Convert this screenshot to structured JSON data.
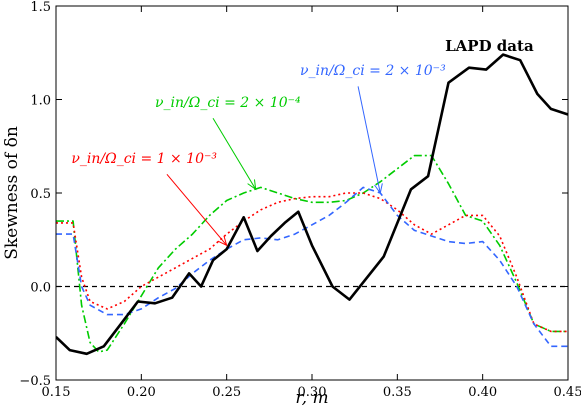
{
  "chart_data": {
    "type": "line",
    "title": "",
    "xlabel": "r, m",
    "ylabel": "Skewness of δn",
    "xlim": [
      0.15,
      0.45
    ],
    "ylim": [
      -0.5,
      1.5
    ],
    "xticks": [
      "0.15",
      "0.20",
      "0.25",
      "0.30",
      "0.35",
      "0.40",
      "0.45"
    ],
    "yticks": [
      "−0.5",
      "0.0",
      "0.5",
      "1.0",
      "1.5"
    ],
    "grid": false,
    "legend": "none",
    "series": [
      {
        "name": "LAPD data",
        "color": "#000000",
        "style": "solid",
        "x": [
          0.15,
          0.158,
          0.168,
          0.178,
          0.188,
          0.198,
          0.208,
          0.218,
          0.228,
          0.235,
          0.242,
          0.25,
          0.26,
          0.268,
          0.276,
          0.284,
          0.292,
          0.3,
          0.312,
          0.322,
          0.342,
          0.358,
          0.368,
          0.38,
          0.392,
          0.402,
          0.412,
          0.422,
          0.432,
          0.44,
          0.45
        ],
        "y": [
          -0.27,
          -0.34,
          -0.36,
          -0.32,
          -0.2,
          -0.08,
          -0.09,
          -0.06,
          0.07,
          0.0,
          0.14,
          0.2,
          0.37,
          0.19,
          0.27,
          0.34,
          0.4,
          0.22,
          0.0,
          -0.07,
          0.16,
          0.52,
          0.59,
          1.09,
          1.17,
          1.16,
          1.24,
          1.21,
          1.03,
          0.95,
          0.92
        ]
      },
      {
        "name": "ν_in/Ω_ci = 1 × 10⁻³",
        "color": "#ff0000",
        "style": "dotted",
        "x": [
          0.15,
          0.155,
          0.16,
          0.165,
          0.17,
          0.18,
          0.19,
          0.2,
          0.21,
          0.22,
          0.23,
          0.24,
          0.25,
          0.26,
          0.27,
          0.28,
          0.29,
          0.3,
          0.31,
          0.32,
          0.33,
          0.34,
          0.35,
          0.36,
          0.37,
          0.38,
          0.39,
          0.4,
          0.41,
          0.42,
          0.43,
          0.44,
          0.45
        ],
        "y": [
          0.34,
          0.34,
          0.34,
          0.05,
          -0.08,
          -0.12,
          -0.08,
          0.0,
          0.05,
          0.1,
          0.15,
          0.2,
          0.28,
          0.35,
          0.41,
          0.45,
          0.47,
          0.48,
          0.48,
          0.5,
          0.5,
          0.47,
          0.41,
          0.33,
          0.28,
          0.33,
          0.38,
          0.38,
          0.27,
          0.05,
          -0.2,
          -0.24,
          -0.24
        ]
      },
      {
        "name": "ν_in/Ω_ci = 2 × 10⁻⁴",
        "color": "#00cc00",
        "style": "dashdot",
        "x": [
          0.15,
          0.155,
          0.16,
          0.165,
          0.17,
          0.175,
          0.18,
          0.19,
          0.2,
          0.21,
          0.22,
          0.23,
          0.24,
          0.25,
          0.26,
          0.27,
          0.28,
          0.29,
          0.3,
          0.31,
          0.32,
          0.33,
          0.34,
          0.35,
          0.36,
          0.37,
          0.38,
          0.39,
          0.4,
          0.41,
          0.42,
          0.43,
          0.44,
          0.45
        ],
        "y": [
          0.35,
          0.35,
          0.35,
          -0.1,
          -0.3,
          -0.35,
          -0.34,
          -0.2,
          -0.05,
          0.1,
          0.2,
          0.28,
          0.38,
          0.46,
          0.5,
          0.53,
          0.5,
          0.47,
          0.45,
          0.45,
          0.46,
          0.5,
          0.56,
          0.63,
          0.7,
          0.7,
          0.55,
          0.38,
          0.35,
          0.22,
          0.02,
          -0.2,
          -0.24,
          -0.24
        ]
      },
      {
        "name": "ν_in/Ω_ci = 2 × 10⁻³",
        "color": "#3366ff",
        "style": "dashed",
        "x": [
          0.15,
          0.155,
          0.16,
          0.165,
          0.17,
          0.18,
          0.19,
          0.2,
          0.21,
          0.22,
          0.23,
          0.24,
          0.25,
          0.26,
          0.27,
          0.28,
          0.29,
          0.3,
          0.31,
          0.32,
          0.33,
          0.34,
          0.35,
          0.36,
          0.37,
          0.38,
          0.39,
          0.4,
          0.41,
          0.42,
          0.43,
          0.44,
          0.45
        ],
        "y": [
          0.28,
          0.28,
          0.28,
          0.0,
          -0.1,
          -0.15,
          -0.15,
          -0.12,
          -0.06,
          -0.01,
          0.07,
          0.14,
          0.2,
          0.25,
          0.26,
          0.25,
          0.28,
          0.33,
          0.38,
          0.45,
          0.53,
          0.5,
          0.38,
          0.3,
          0.27,
          0.24,
          0.23,
          0.24,
          0.14,
          0.0,
          -0.2,
          -0.32,
          -0.32
        ]
      },
      {
        "name": "zero",
        "color": "#000000",
        "style": "dashed",
        "x": [
          0.15,
          0.45
        ],
        "y": [
          0.0,
          0.0
        ]
      }
    ],
    "annotations": [
      {
        "text": "LAPD data",
        "color": "#000000",
        "x": 0.378,
        "y": 1.26,
        "bold": true
      },
      {
        "text": "ν_in/Ω_ci = 1 × 10⁻³",
        "color": "#ff0000",
        "x": 0.159,
        "y": 0.66,
        "arrow_to": [
          0.25,
          0.22
        ]
      },
      {
        "text": "ν_in/Ω_ci = 2 × 10⁻⁴",
        "color": "#00cc00",
        "x": 0.208,
        "y": 0.96,
        "arrow_to": [
          0.267,
          0.52
        ]
      },
      {
        "text": "ν_in/Ω_ci = 2 × 10⁻³",
        "color": "#3366ff",
        "x": 0.293,
        "y": 1.13,
        "arrow_to": [
          0.34,
          0.5
        ]
      }
    ]
  }
}
